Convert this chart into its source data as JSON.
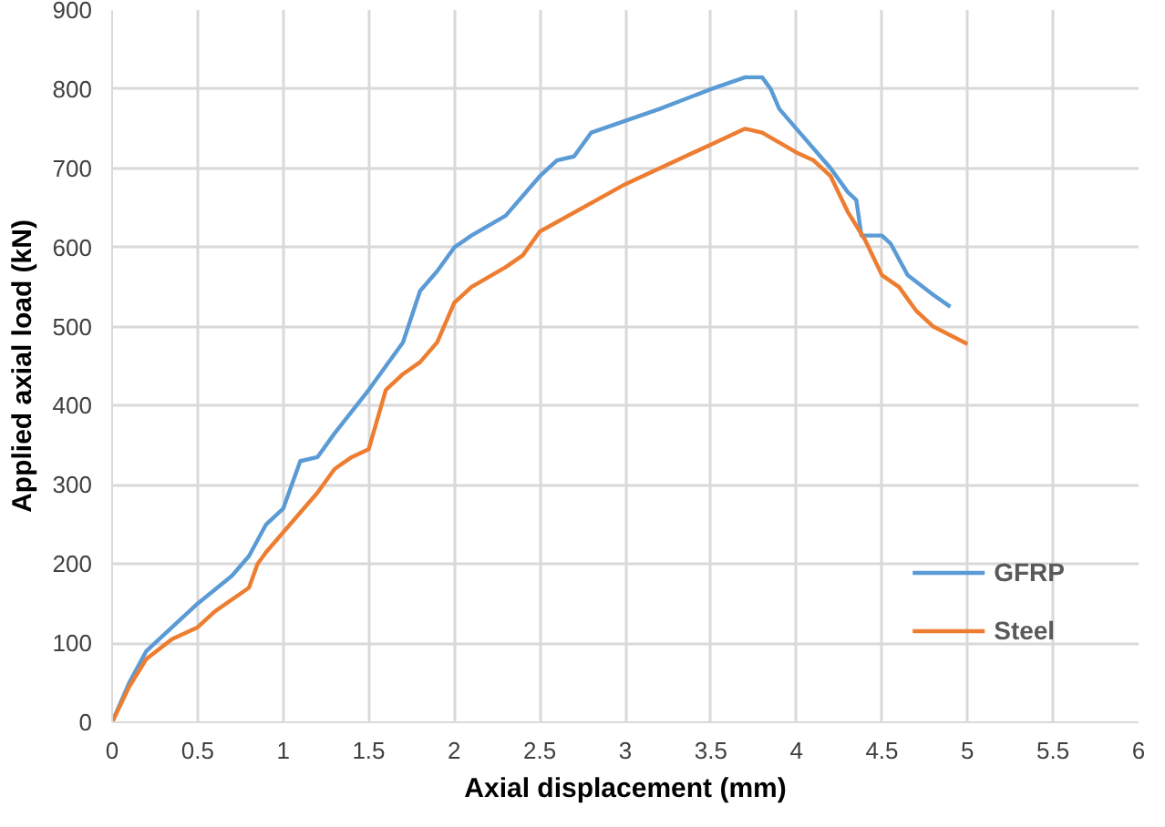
{
  "chart_data": {
    "type": "line",
    "xlabel": "Axial displacement (mm)",
    "ylabel": "Applied axial load (kN)",
    "xlim": [
      0,
      6
    ],
    "xticks": [
      0,
      0.5,
      1,
      1.5,
      2,
      2.5,
      3,
      3.5,
      4,
      4.5,
      5,
      5.5,
      6
    ],
    "ylim": [
      0,
      900
    ],
    "yticks": [
      0,
      100,
      200,
      300,
      400,
      500,
      600,
      700,
      800,
      900
    ],
    "grid": true,
    "legend": "bottom right",
    "marker": "none",
    "line_style": "solid",
    "series": [
      {
        "name": "GFRP",
        "color": "#5b9bd5",
        "x": [
          0,
          0.1,
          0.2,
          0.3,
          0.5,
          0.7,
          0.8,
          0.9,
          1.0,
          1.05,
          1.1,
          1.2,
          1.3,
          1.5,
          1.7,
          1.8,
          1.9,
          2.0,
          2.1,
          2.3,
          2.5,
          2.6,
          2.7,
          2.8,
          3.0,
          3.2,
          3.5,
          3.7,
          3.8,
          3.85,
          3.9,
          4.0,
          4.2,
          4.3,
          4.35,
          4.38,
          4.5,
          4.55,
          4.65,
          4.8,
          4.9
        ],
        "values": [
          0,
          50,
          90,
          110,
          150,
          185,
          210,
          250,
          270,
          300,
          330,
          335,
          365,
          420,
          480,
          545,
          570,
          600,
          615,
          640,
          690,
          710,
          715,
          745,
          760,
          775,
          800,
          815,
          815,
          800,
          775,
          750,
          700,
          670,
          660,
          615,
          615,
          605,
          565,
          540,
          525
        ]
      },
      {
        "name": "Steel",
        "color": "#ed7d31",
        "x": [
          0,
          0.1,
          0.2,
          0.35,
          0.5,
          0.6,
          0.8,
          0.85,
          0.9,
          1.0,
          1.2,
          1.3,
          1.4,
          1.5,
          1.6,
          1.7,
          1.8,
          1.9,
          2.0,
          2.1,
          2.3,
          2.4,
          2.5,
          3.0,
          3.5,
          3.7,
          3.8,
          4.0,
          4.1,
          4.2,
          4.3,
          4.4,
          4.5,
          4.6,
          4.7,
          4.8,
          5.0
        ],
        "values": [
          0,
          45,
          80,
          105,
          120,
          140,
          170,
          200,
          215,
          240,
          290,
          320,
          335,
          345,
          420,
          440,
          455,
          480,
          530,
          550,
          575,
          590,
          620,
          680,
          730,
          750,
          745,
          720,
          710,
          690,
          645,
          610,
          565,
          550,
          520,
          500,
          478
        ]
      }
    ]
  }
}
